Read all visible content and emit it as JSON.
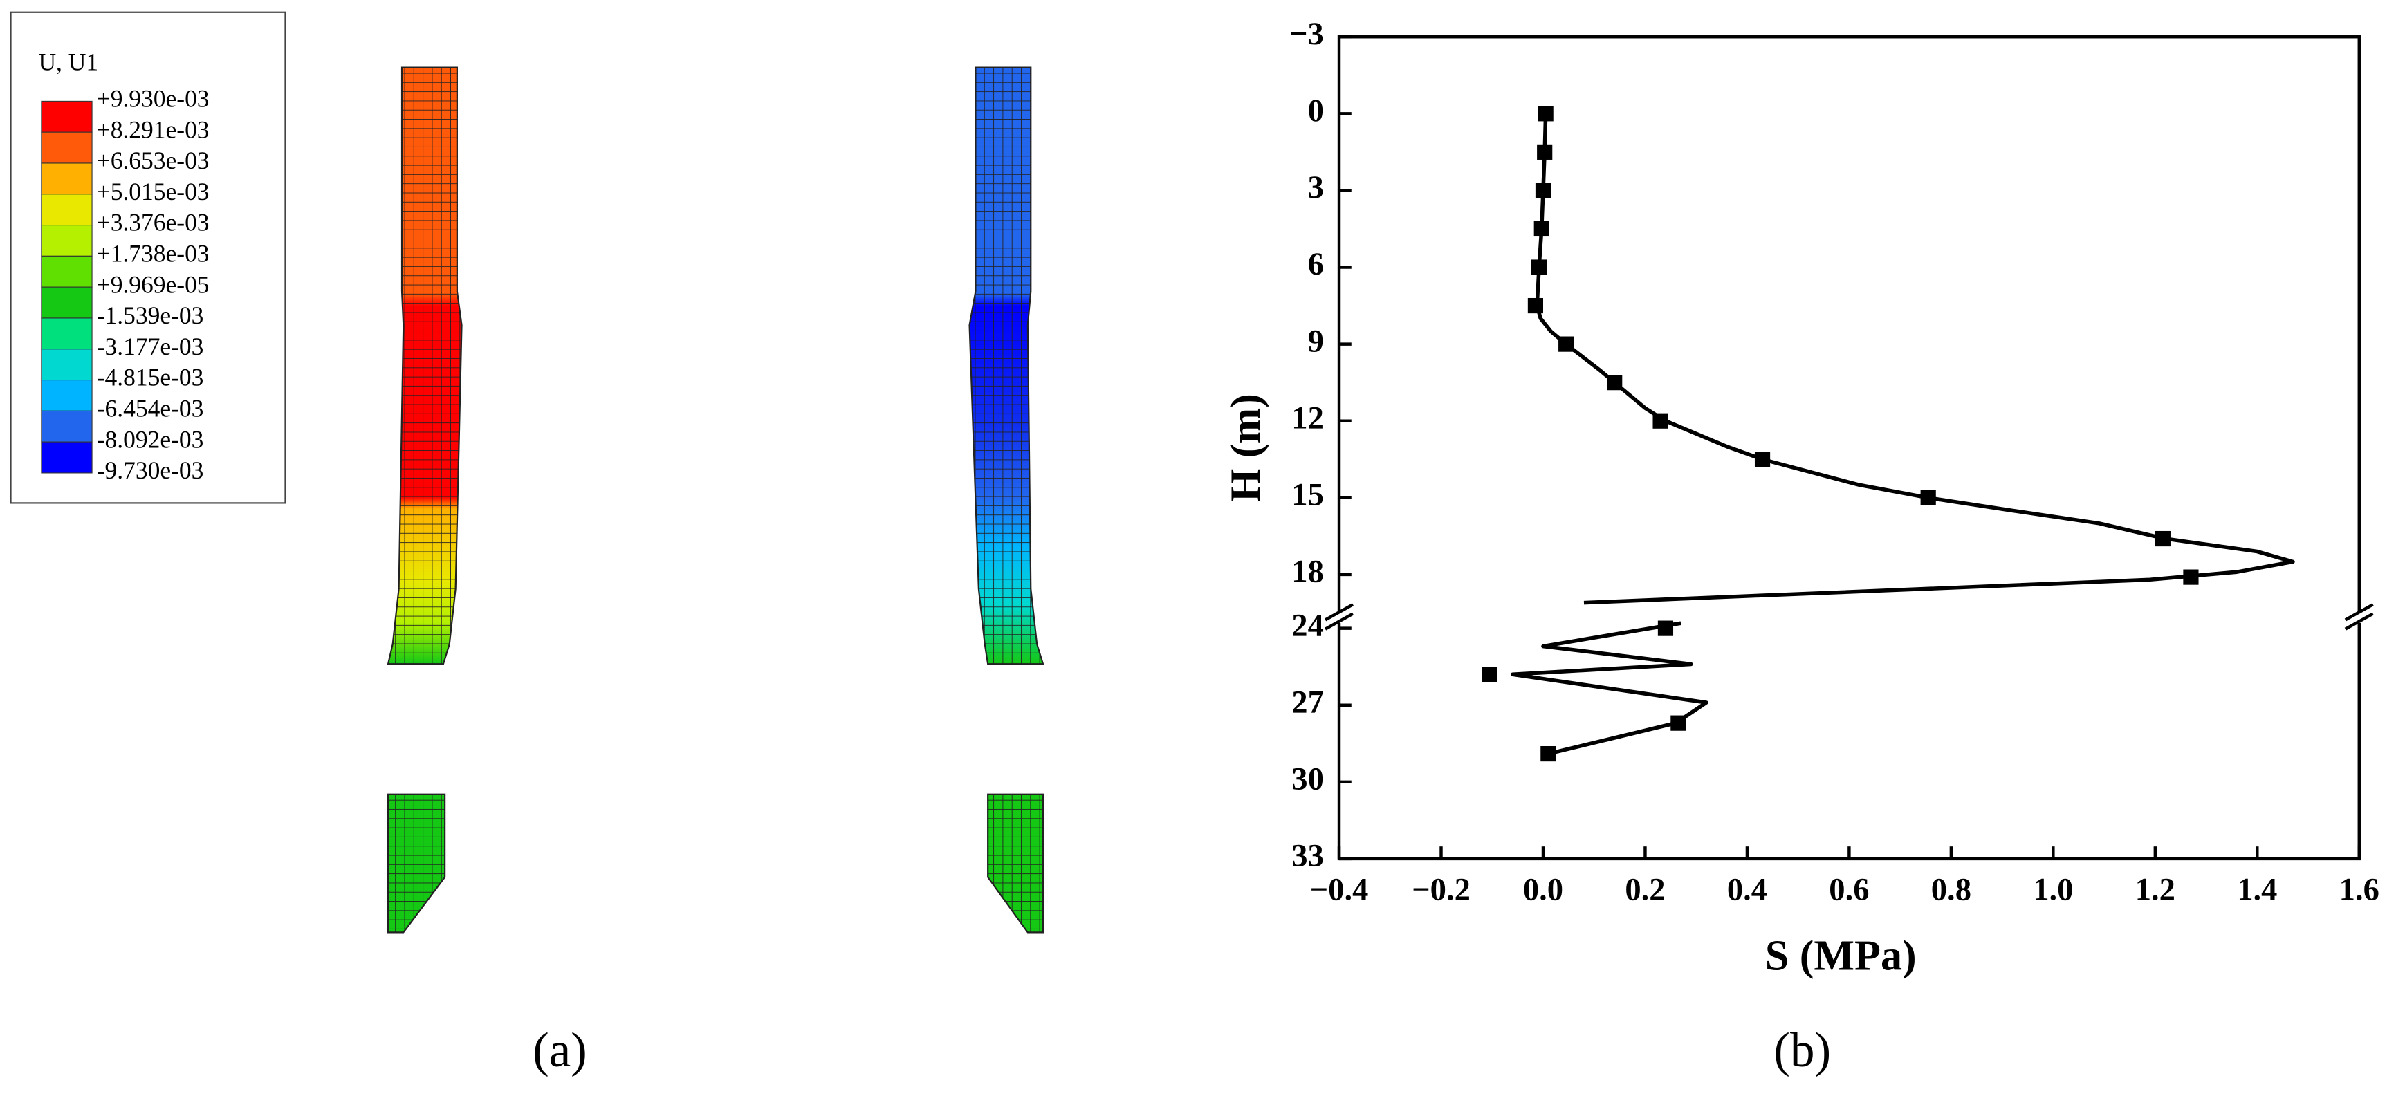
{
  "panel_a": {
    "legend": {
      "title": "U, U1",
      "labels": [
        "+9.930e-03",
        "+8.291e-03",
        "+6.653e-03",
        "+5.015e-03",
        "+3.376e-03",
        "+1.738e-03",
        "+9.969e-05",
        "-1.539e-03",
        "-3.177e-03",
        "-4.815e-03",
        "-6.454e-03",
        "-8.092e-03",
        "-9.730e-03"
      ],
      "colors": [
        "#ff0000",
        "#ff5a0a",
        "#ffb000",
        "#e8e800",
        "#b4f000",
        "#5fe000",
        "#14c814",
        "#00e07c",
        "#00d8d0",
        "#00b4ff",
        "#2266ee",
        "#0000ff"
      ]
    },
    "caption": "(a)"
  },
  "chart_data": {
    "type": "line",
    "caption": "(b)",
    "x_label": "S (MPa)",
    "y_label": "H (m)",
    "xlim": [
      -0.4,
      1.6
    ],
    "xticks": [
      {
        "value": -0.4,
        "label": "−0.4"
      },
      {
        "value": -0.2,
        "label": "−0.2"
      },
      {
        "value": 0,
        "label": "0.0"
      },
      0.2,
      0.4,
      0.6,
      0.8,
      {
        "value": 1,
        "label": "1.0"
      },
      1.2,
      1.4,
      1.6
    ],
    "ylim": [
      -3,
      33
    ],
    "y_inverted": true,
    "y_break": [
      19.5,
      23.7
    ],
    "yticks": [
      {
        "value": -3,
        "label": "−3"
      },
      0,
      3,
      6,
      9,
      12,
      15,
      18,
      24,
      27,
      30,
      33
    ],
    "series": [
      {
        "name": "curve",
        "color": "#000000",
        "x": [
          0.005,
          0.003,
          0,
          -0.003,
          -0.008,
          -0.012,
          -0.005,
          0.015,
          0.045,
          0.11,
          0.14,
          0.2,
          0.24,
          0.36,
          0.43,
          0.62,
          0.755,
          0.92,
          1.09,
          1.22,
          1.4,
          1.47,
          1.36,
          1.19,
          0.45,
          0.08,
          null,
          0.27,
          0.0,
          0.29,
          -0.06,
          0.32,
          0.26,
          0.01
        ],
        "values": [
          0,
          1.5,
          3,
          4.5,
          6,
          7.5,
          8,
          8.5,
          9,
          10,
          10.5,
          11.5,
          12,
          13,
          13.5,
          14.5,
          15,
          15.5,
          16,
          16.6,
          17.1,
          17.5,
          17.9,
          18.2,
          18.8,
          19.1,
          null,
          23.8,
          24.7,
          25.4,
          25.8,
          26.9,
          27.7,
          28.9
        ]
      },
      {
        "name": "points",
        "color": "#000000",
        "marker": "square",
        "x": [
          0.005,
          0.003,
          0,
          -0.003,
          -0.008,
          -0.015,
          0.045,
          0.14,
          0.23,
          0.43,
          0.755,
          1.215,
          1.27,
          0.24,
          -0.105,
          0.265,
          0.01
        ],
        "values": [
          0,
          1.5,
          3,
          4.5,
          6,
          7.5,
          9,
          10.5,
          12,
          13.5,
          15,
          16.6,
          18.1,
          24,
          25.8,
          27.7,
          28.9
        ]
      }
    ]
  }
}
